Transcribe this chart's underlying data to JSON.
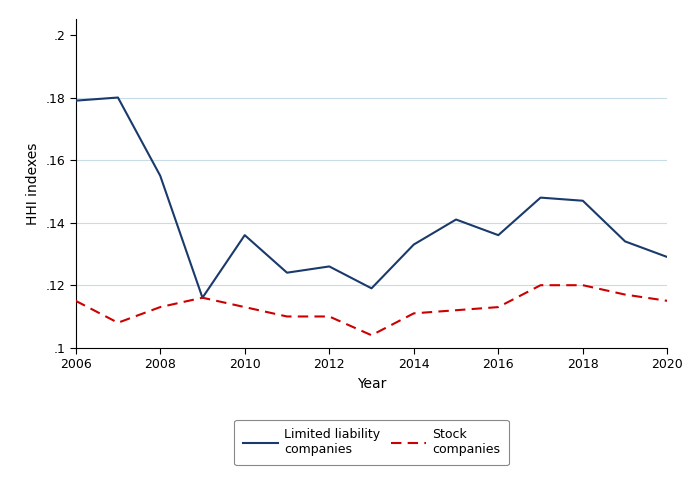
{
  "years": [
    2006,
    2007,
    2008,
    2009,
    2010,
    2011,
    2012,
    2013,
    2014,
    2015,
    2016,
    2017,
    2018,
    2019,
    2020
  ],
  "limited_liability": [
    0.179,
    0.18,
    0.155,
    0.116,
    0.136,
    0.124,
    0.126,
    0.119,
    0.133,
    0.141,
    0.136,
    0.148,
    0.147,
    0.134,
    0.129
  ],
  "stock_companies": [
    0.115,
    0.108,
    0.113,
    0.116,
    0.113,
    0.11,
    0.11,
    0.104,
    0.111,
    0.112,
    0.113,
    0.12,
    0.12,
    0.117,
    0.115
  ],
  "llc_color": "#1a3a6b",
  "stock_color": "#cc0000",
  "xlabel": "Year",
  "ylabel": "HHI indexes",
  "ylim": [
    0.1,
    0.205
  ],
  "yticks": [
    0.1,
    0.12,
    0.14,
    0.16,
    0.18,
    0.2
  ],
  "ytick_labels": [
    ".1",
    ".12",
    ".14",
    ".16",
    ".18",
    ".2"
  ],
  "grid_yticks": [
    0.12,
    0.14,
    0.16,
    0.18
  ],
  "xticks": [
    2006,
    2008,
    2010,
    2012,
    2014,
    2016,
    2018,
    2020
  ],
  "legend_llc": "Limited liability\ncompanies",
  "legend_stock": "Stock\ncompanies",
  "background_color": "#ffffff",
  "grid_color": "#c8dce8",
  "llc_linewidth": 1.5,
  "stock_linewidth": 1.5
}
